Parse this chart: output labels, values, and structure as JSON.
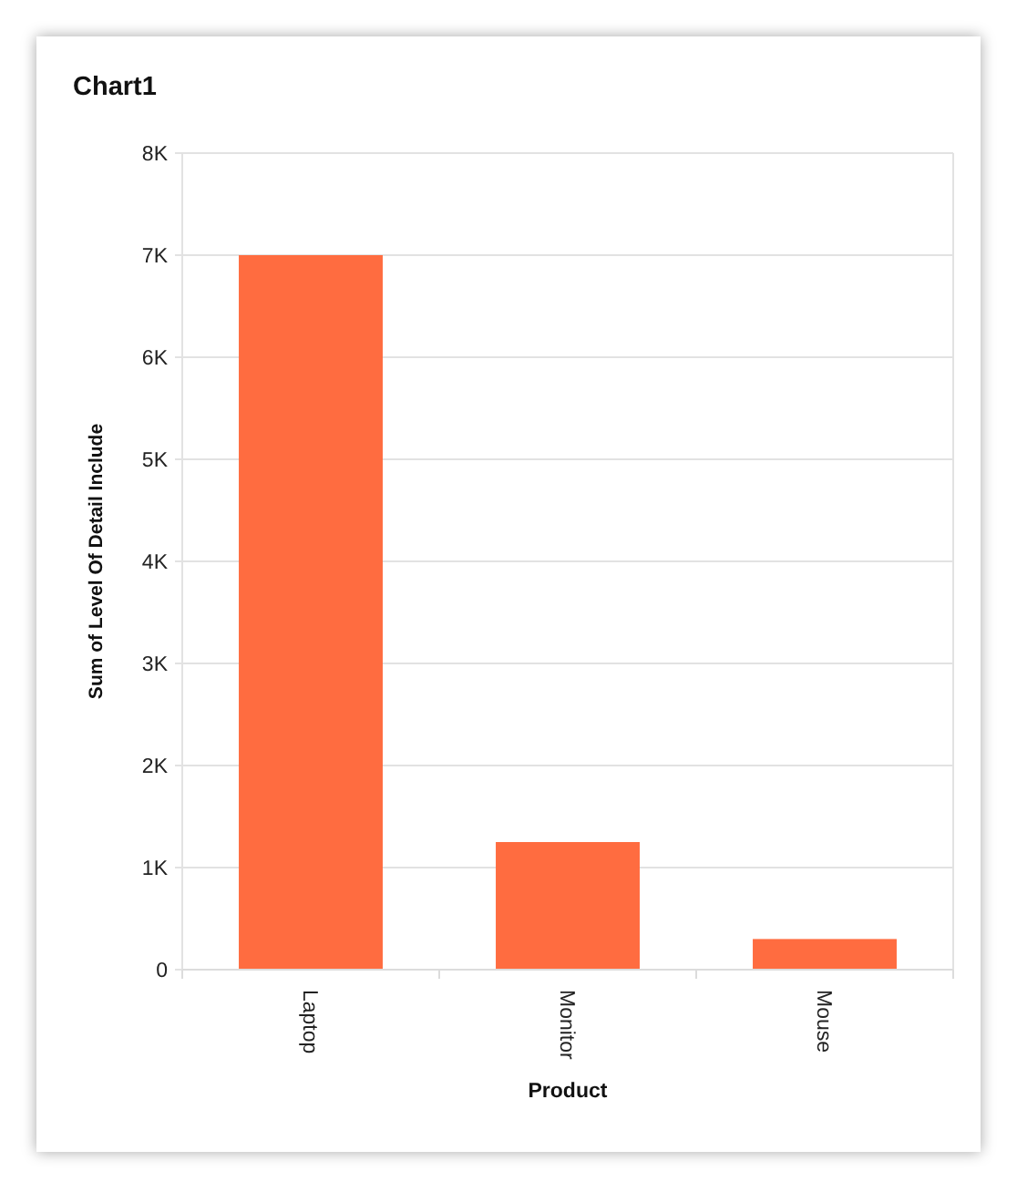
{
  "chart_data": {
    "type": "bar",
    "title": "Chart1",
    "xlabel": "Product",
    "ylabel": "Sum of Level Of Detail Include",
    "categories": [
      "Laptop",
      "Monitor",
      "Mouse"
    ],
    "values": [
      7000,
      1250,
      300
    ],
    "color": "#ff6c40",
    "ylim": [
      0,
      8000
    ],
    "yticks": [
      0,
      {
        "value": 1000,
        "label": "1K"
      },
      {
        "value": 2000,
        "label": "2K"
      },
      {
        "value": 3000,
        "label": "3K"
      },
      {
        "value": 4000,
        "label": "4K"
      },
      {
        "value": 5000,
        "label": "5K"
      },
      {
        "value": 6000,
        "label": "6K"
      },
      {
        "value": 7000,
        "label": "7K"
      },
      {
        "value": 8000,
        "label": "8K"
      }
    ],
    "grid": "y"
  }
}
